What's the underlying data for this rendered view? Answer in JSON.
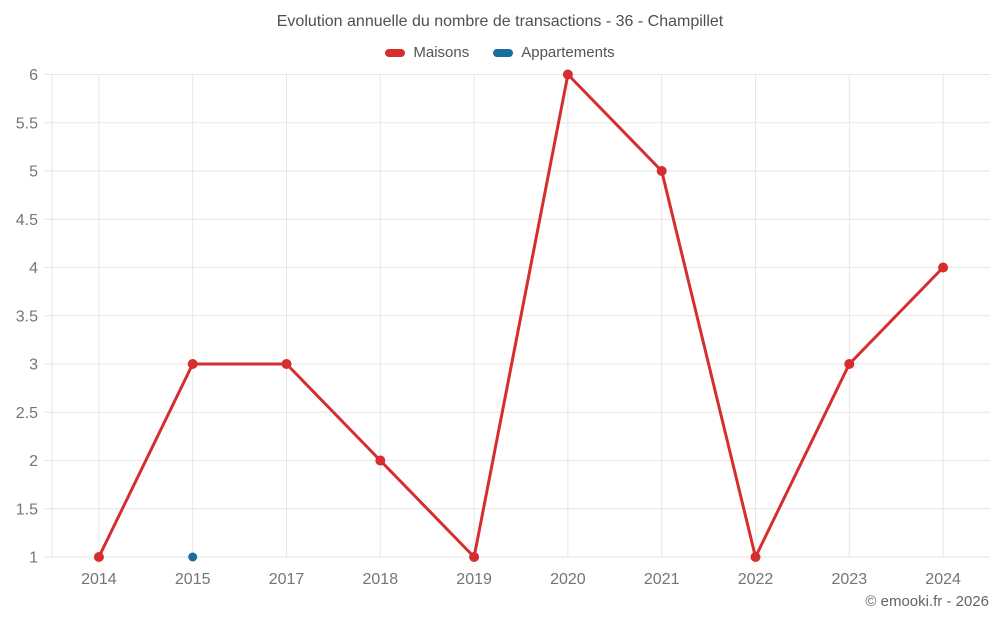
{
  "page": {
    "copyright": "© emooki.fr - 2026"
  },
  "chart_data": {
    "type": "line",
    "title": "Evolution annuelle du nombre de transactions - 36 - Champillet",
    "categories": [
      "2014",
      "2015",
      "2017",
      "2018",
      "2019",
      "2020",
      "2021",
      "2022",
      "2023",
      "2024"
    ],
    "series": [
      {
        "name": "Maisons",
        "color": "#d62e2e",
        "values": [
          1,
          3,
          3,
          2,
          1,
          6,
          5,
          1,
          3,
          4
        ]
      },
      {
        "name": "Appartements",
        "color": "#1a6da3",
        "values": [
          null,
          1,
          null,
          null,
          null,
          null,
          null,
          null,
          null,
          null
        ]
      }
    ],
    "xlabel": "",
    "ylabel": "",
    "ylim": [
      1,
      6
    ],
    "ytick_step": 0.5,
    "grid": true,
    "legend_position": "top",
    "grid_color": "#e6e6e6",
    "axis_label_color": "#757575"
  }
}
